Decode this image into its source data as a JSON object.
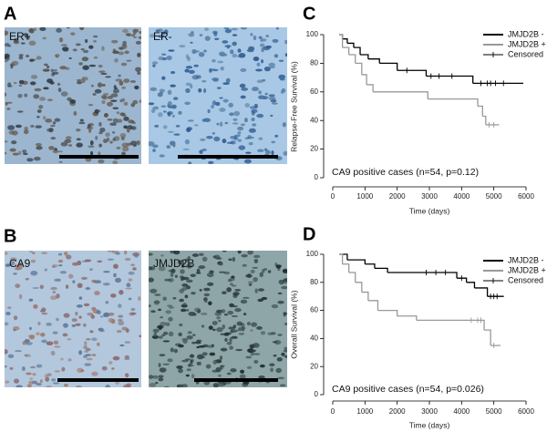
{
  "panels": {
    "A": {
      "label": "A",
      "images": [
        "ER+",
        "ER-"
      ]
    },
    "B": {
      "label": "B",
      "images": [
        "CA9",
        "JMJD2B"
      ]
    }
  },
  "chart_data": [
    {
      "type": "step",
      "panel_label": "C",
      "ylabel": "Relapse-Free Survival (%)",
      "xlabel": "Time (days)",
      "annotation": "CA9 positive cases (n=54, p=0.12)",
      "censored_label": "Censored",
      "legend": "upper right",
      "xlim": [
        0,
        6000
      ],
      "ylim": [
        0,
        100
      ],
      "xticks": [
        0,
        1000,
        2000,
        3000,
        4000,
        5000,
        6000
      ],
      "yticks": [
        0,
        20,
        40,
        60,
        80,
        100
      ],
      "series": [
        {
          "name": "JMJD2B -",
          "color": "#000000",
          "x": [
            200,
            300,
            450,
            650,
            850,
            1100,
            1450,
            2000,
            2900,
            4350,
            5900
          ],
          "values": [
            100,
            97,
            94,
            91,
            86,
            83,
            80,
            75,
            71,
            66,
            66
          ],
          "censored_x": [
            2300,
            3050,
            3300,
            3700,
            4600,
            4800,
            4900,
            5050,
            5300
          ],
          "censored_values": [
            75,
            71,
            71,
            71,
            66,
            66,
            66,
            66,
            66
          ]
        },
        {
          "name": "JMJD2B +",
          "color": "#999999",
          "x": [
            200,
            300,
            500,
            700,
            900,
            1050,
            1250,
            2950,
            4500,
            4650,
            4750,
            5150
          ],
          "values": [
            100,
            91,
            86,
            80,
            72,
            65,
            60,
            55,
            50,
            43,
            37,
            37
          ],
          "censored_x": [
            4850,
            5000
          ],
          "censored_values": [
            37,
            37
          ]
        }
      ]
    },
    {
      "type": "step",
      "panel_label": "D",
      "ylabel": "Overall Survival (%)",
      "xlabel": "Time (days)",
      "annotation": "CA9 positive cases (n=54, p=0.026)",
      "censored_label": "Censored",
      "legend": "upper right",
      "xlim": [
        0,
        6000
      ],
      "ylim": [
        0,
        100
      ],
      "xticks": [
        0,
        1000,
        2000,
        3000,
        4000,
        5000,
        6000
      ],
      "yticks": [
        0,
        20,
        40,
        60,
        80,
        100
      ],
      "series": [
        {
          "name": "JMJD2B -",
          "color": "#000000",
          "x": [
            200,
            450,
            1000,
            1300,
            1700,
            3850,
            4150,
            4400,
            4800,
            5300
          ],
          "values": [
            100,
            96,
            93,
            90,
            87,
            83,
            80,
            76,
            70,
            70
          ],
          "censored_x": [
            2900,
            3200,
            3500,
            4000,
            4900,
            5000,
            5100
          ],
          "censored_values": [
            87,
            87,
            87,
            83,
            70,
            70,
            70
          ]
        },
        {
          "name": "JMJD2B +",
          "color": "#999999",
          "x": [
            200,
            300,
            500,
            700,
            900,
            1100,
            1400,
            2000,
            2600,
            4700,
            4900,
            5200
          ],
          "values": [
            100,
            93,
            87,
            80,
            73,
            67,
            60,
            56,
            53,
            46,
            35,
            35
          ],
          "censored_x": [
            4300,
            4500,
            4600,
            5000
          ],
          "censored_values": [
            53,
            53,
            53,
            35
          ]
        }
      ]
    }
  ]
}
